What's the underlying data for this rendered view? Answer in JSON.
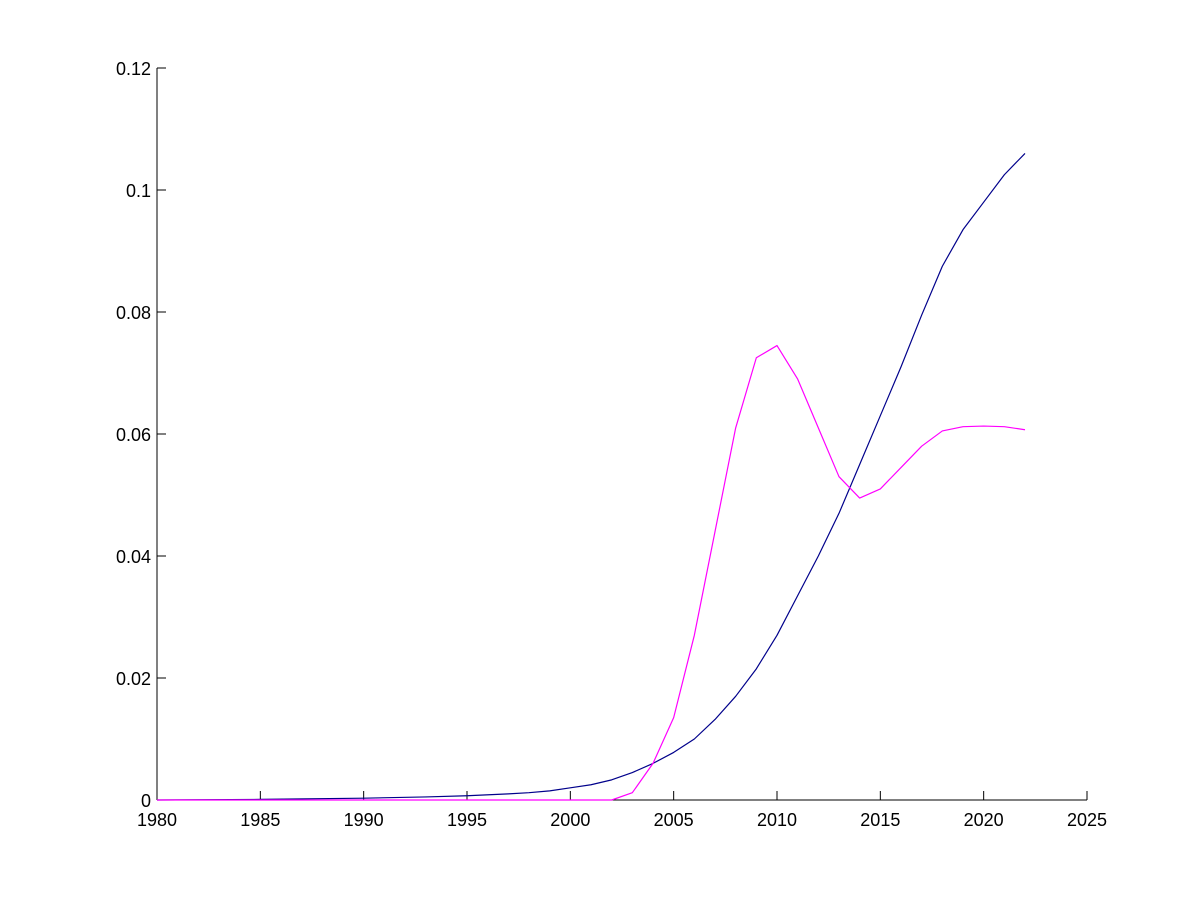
{
  "chart_data": {
    "type": "line",
    "title": "",
    "xlabel": "",
    "ylabel": "",
    "xlim": [
      1980,
      2025
    ],
    "ylim": [
      0,
      0.12
    ],
    "grid": false,
    "legend": "none",
    "x_ticks": [
      1980,
      1985,
      1990,
      1995,
      2000,
      2005,
      2010,
      2015,
      2020,
      2025
    ],
    "x_tick_labels": [
      "1980",
      "1985",
      "1990",
      "1995",
      "2000",
      "2005",
      "2010",
      "2015",
      "2020",
      "2025"
    ],
    "y_ticks": [
      0,
      0.02,
      0.04,
      0.06,
      0.08,
      0.1,
      0.12
    ],
    "y_tick_labels": [
      "0",
      "0.02",
      "0.04",
      "0.06",
      "0.08",
      "0.1",
      "0.12"
    ],
    "series": [
      {
        "color": "#00008b",
        "x": [
          1980,
          1985,
          1990,
          1993,
          1995,
          1997,
          1998,
          1999,
          2000,
          2001,
          2002,
          2003,
          2004,
          2005,
          2006,
          2007,
          2008,
          2009,
          2010,
          2011,
          2012,
          2013,
          2014,
          2015,
          2016,
          2017,
          2018,
          2019,
          2020,
          2021,
          2022
        ],
        "y": [
          0,
          0.0001,
          0.0003,
          0.0005,
          0.0007,
          0.001,
          0.0012,
          0.0015,
          0.002,
          0.0025,
          0.0033,
          0.0045,
          0.006,
          0.0078,
          0.01,
          0.0132,
          0.017,
          0.0215,
          0.027,
          0.0335,
          0.04,
          0.047,
          0.055,
          0.063,
          0.071,
          0.0795,
          0.0875,
          0.0935,
          0.098,
          0.1025,
          0.106
        ]
      },
      {
        "color": "#ff00ff",
        "x": [
          1980,
          1985,
          1990,
          2000,
          2002,
          2003,
          2004,
          2005,
          2006,
          2007,
          2008,
          2009,
          2010,
          2011,
          2012,
          2013,
          2014,
          2015,
          2016,
          2017,
          2018,
          2019,
          2020,
          2021,
          2022
        ],
        "y": [
          0,
          0,
          0,
          0,
          0,
          0.0012,
          0.006,
          0.0135,
          0.027,
          0.044,
          0.061,
          0.0725,
          0.0745,
          0.069,
          0.061,
          0.053,
          0.0495,
          0.051,
          0.0545,
          0.058,
          0.0605,
          0.0612,
          0.0613,
          0.0612,
          0.0607
        ]
      }
    ]
  }
}
